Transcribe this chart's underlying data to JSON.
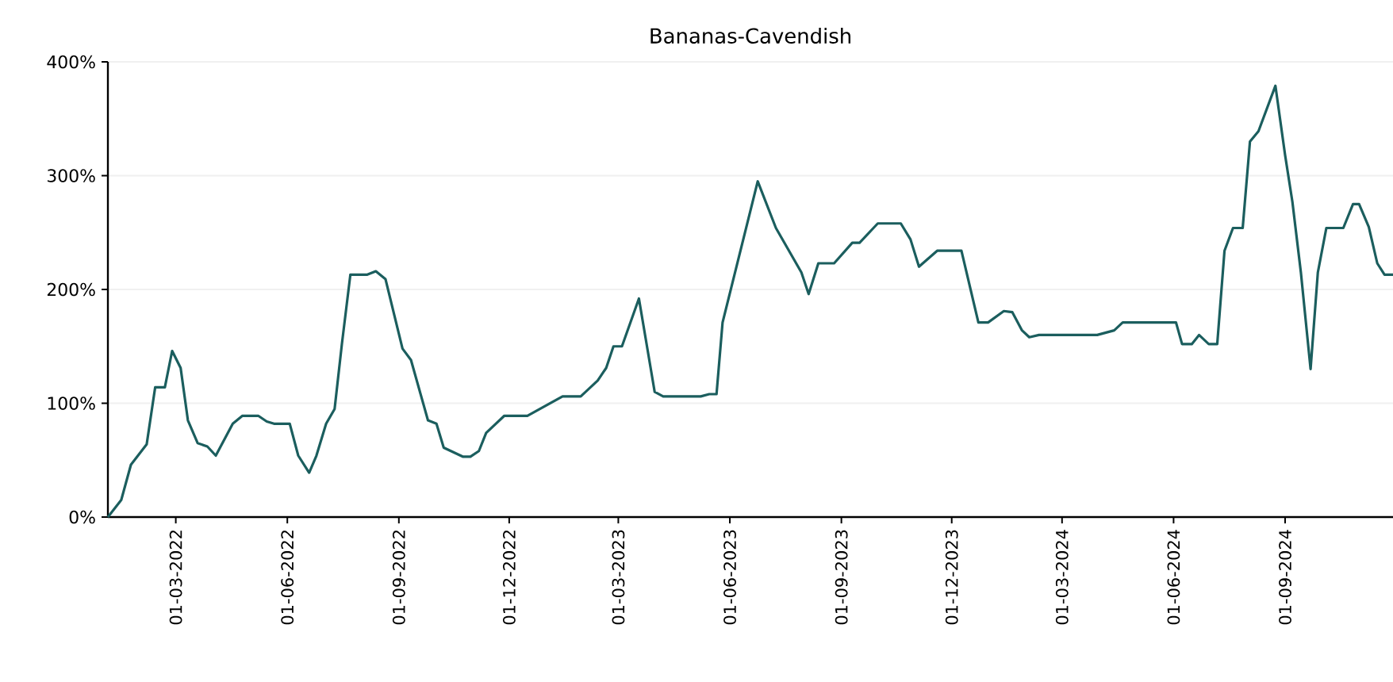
{
  "chart_data": {
    "type": "line",
    "title": "Bananas-Cavendish",
    "x": [
      "2022-01-04",
      "2022-01-15",
      "2022-01-23",
      "2022-02-05",
      "2022-02-12",
      "2022-02-20",
      "2022-02-26",
      "2022-03-05",
      "2022-03-11",
      "2022-03-19",
      "2022-03-27",
      "2022-04-03",
      "2022-04-17",
      "2022-04-25",
      "2022-05-08",
      "2022-05-15",
      "2022-05-21",
      "2022-06-03",
      "2022-06-10",
      "2022-06-19",
      "2022-06-25",
      "2022-07-03",
      "2022-07-10",
      "2022-07-16",
      "2022-07-23",
      "2022-08-06",
      "2022-08-13",
      "2022-08-21",
      "2022-09-04",
      "2022-09-11",
      "2022-09-25",
      "2022-10-02",
      "2022-10-08",
      "2022-10-24",
      "2022-10-30",
      "2022-11-06",
      "2022-11-12",
      "2022-11-27",
      "2022-12-16",
      "2023-01-14",
      "2023-01-29",
      "2023-02-12",
      "2023-02-19",
      "2023-02-25",
      "2023-03-04",
      "2023-03-18",
      "2023-03-31",
      "2023-04-07",
      "2023-05-08",
      "2023-05-15",
      "2023-05-21",
      "2023-05-26",
      "2023-06-24",
      "2023-07-09",
      "2023-07-30",
      "2023-08-05",
      "2023-08-13",
      "2023-08-26",
      "2023-09-10",
      "2023-09-16",
      "2023-10-01",
      "2023-10-20",
      "2023-10-28",
      "2023-11-04",
      "2023-11-19",
      "2023-12-09",
      "2023-12-23",
      "2023-12-31",
      "2024-01-13",
      "2024-01-20",
      "2024-01-28",
      "2024-02-03",
      "2024-02-11",
      "2024-03-30",
      "2024-04-13",
      "2024-04-20",
      "2024-06-03",
      "2024-06-08",
      "2024-06-16",
      "2024-06-22",
      "2024-06-30",
      "2024-07-07",
      "2024-07-13",
      "2024-07-20",
      "2024-07-28",
      "2024-08-03",
      "2024-08-10",
      "2024-08-24",
      "2024-09-01",
      "2024-09-07",
      "2024-09-14",
      "2024-09-22",
      "2024-09-28",
      "2024-10-05",
      "2024-10-19",
      "2024-10-27",
      "2024-11-01",
      "2024-11-09",
      "2024-11-16",
      "2024-11-22",
      "2024-11-29"
    ],
    "values": [
      0,
      15,
      46,
      64,
      114,
      114,
      146,
      131,
      85,
      65,
      62,
      54,
      82,
      89,
      89,
      84,
      82,
      82,
      54,
      39,
      54,
      82,
      95,
      152,
      213,
      213,
      216,
      209,
      148,
      138,
      85,
      82,
      61,
      53,
      53,
      58,
      74,
      89,
      89,
      106,
      106,
      120,
      131,
      150,
      150,
      192,
      110,
      106,
      106,
      108,
      108,
      171,
      295,
      254,
      215,
      196,
      223,
      223,
      241,
      241,
      258,
      258,
      244,
      220,
      234,
      234,
      171,
      171,
      181,
      180,
      164,
      158,
      160,
      160,
      164,
      171,
      171,
      152,
      152,
      160,
      152,
      152,
      234,
      254,
      254,
      330,
      339,
      379,
      318,
      277,
      215,
      130,
      215,
      254,
      254,
      275,
      275,
      255,
      223,
      213,
      213
    ],
    "color": "#1b5e5e",
    "xlim": [
      "2022-01-04",
      "2024-11-29"
    ],
    "xticks": [
      {
        "value": "2022-03-01",
        "label": "01-03-2022"
      },
      {
        "value": "2022-06-01",
        "label": "01-06-2022"
      },
      {
        "value": "2022-09-01",
        "label": "01-09-2022"
      },
      {
        "value": "2022-12-01",
        "label": "01-12-2022"
      },
      {
        "value": "2023-03-01",
        "label": "01-03-2023"
      },
      {
        "value": "2023-06-01",
        "label": "01-06-2023"
      },
      {
        "value": "2023-09-01",
        "label": "01-09-2023"
      },
      {
        "value": "2023-12-01",
        "label": "01-12-2023"
      },
      {
        "value": "2024-03-01",
        "label": "01-03-2024"
      },
      {
        "value": "2024-06-01",
        "label": "01-06-2024"
      },
      {
        "value": "2024-09-01",
        "label": "01-09-2024"
      }
    ],
    "ylim": [
      0,
      400
    ],
    "yticks": [
      {
        "value": 0,
        "label": "0%"
      },
      {
        "value": 100,
        "label": "100%"
      },
      {
        "value": 200,
        "label": "200%"
      },
      {
        "value": 300,
        "label": "300%"
      },
      {
        "value": 400,
        "label": "400%"
      }
    ],
    "grid": "y"
  }
}
